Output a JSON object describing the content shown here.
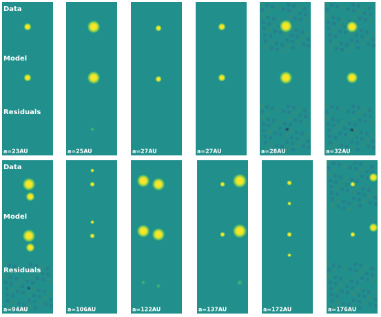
{
  "rows": [
    {
      "labels": [
        "Data",
        "Model",
        "Residuals"
      ],
      "panels": [
        "a=23AU",
        "a=25AU",
        "a=27AU",
        "a=27AU",
        "a=28AU",
        "a=32AU"
      ]
    },
    {
      "labels": [
        "Data",
        "Model",
        "Residuals"
      ],
      "panels": [
        "a=94AU",
        "a=106AU",
        "a=122AU",
        "a=137AU",
        "a=172AU",
        "a=176AU"
      ]
    }
  ]
}
